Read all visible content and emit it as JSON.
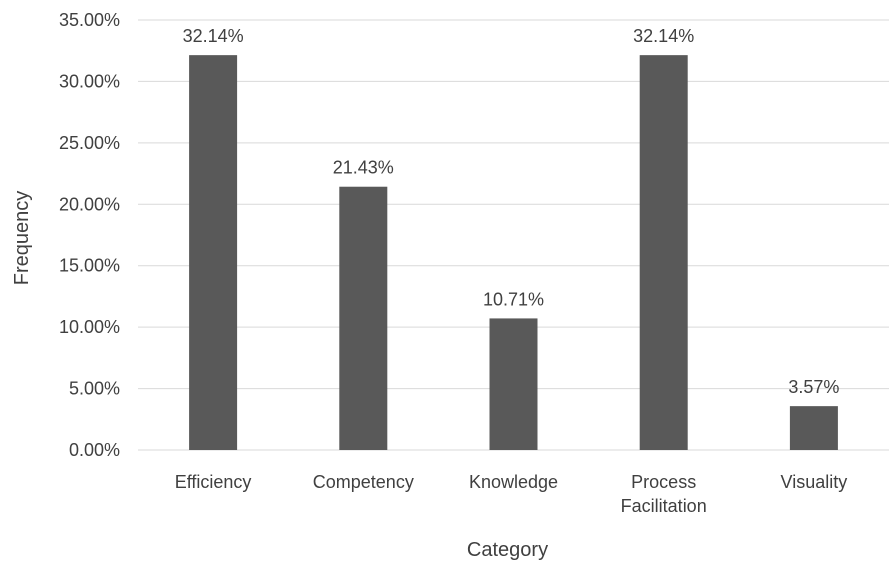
{
  "chart_data": {
    "type": "bar",
    "categories": [
      "Efficiency",
      "Competency",
      "Knowledge",
      "Process Facilitation",
      "Visuality"
    ],
    "category_lines": [
      [
        "Efficiency"
      ],
      [
        "Competency"
      ],
      [
        "Knowledge"
      ],
      [
        "Process",
        "Facilitation"
      ],
      [
        "Visuality"
      ]
    ],
    "values": [
      32.14,
      21.43,
      10.71,
      32.14,
      3.57
    ],
    "data_labels": [
      "32.14%",
      "21.43%",
      "10.71%",
      "32.14%",
      "3.57%"
    ],
    "y_ticks": [
      0,
      5,
      10,
      15,
      20,
      25,
      30,
      35
    ],
    "y_tick_labels": [
      "0.00%",
      "5.00%",
      "10.00%",
      "15.00%",
      "20.00%",
      "25.00%",
      "30.00%",
      "35.00%"
    ],
    "ylim": [
      0,
      35
    ],
    "xlabel": "Category",
    "ylabel": "Frequency",
    "grid": true,
    "bar_color": "#595959",
    "gridline_color": "#d9d9d9",
    "text_color": "#404040"
  }
}
